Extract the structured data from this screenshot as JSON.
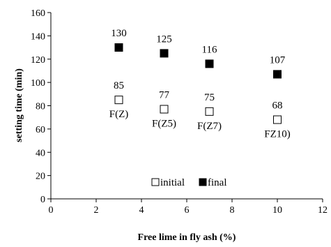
{
  "chart_data": {
    "type": "scatter",
    "title": "",
    "xlabel": "Free lime in fly ash (%)",
    "ylabel": "setting time (min)",
    "xlim": [
      0,
      12
    ],
    "ylim": [
      0,
      160
    ],
    "xticks": [
      0,
      2,
      4,
      6,
      8,
      10,
      12
    ],
    "yticks": [
      0,
      20,
      40,
      60,
      80,
      100,
      120,
      140,
      160
    ],
    "grid": false,
    "legend_position": "bottom-center",
    "series": [
      {
        "name": "initial",
        "marker": "open-square",
        "color": "#000000",
        "points": [
          {
            "x": 3,
            "y": 85,
            "label": "85",
            "category": "F(Z)"
          },
          {
            "x": 5,
            "y": 77,
            "label": "77",
            "category": "F(Z5)"
          },
          {
            "x": 7,
            "y": 75,
            "label": "75",
            "category": "F(Z7)"
          },
          {
            "x": 10,
            "y": 68,
            "label": "68",
            "category": "FZ10)"
          }
        ]
      },
      {
        "name": "final",
        "marker": "filled-square",
        "color": "#000000",
        "points": [
          {
            "x": 3,
            "y": 130,
            "label": "130"
          },
          {
            "x": 5,
            "y": 125,
            "label": "125"
          },
          {
            "x": 7,
            "y": 116,
            "label": "116"
          },
          {
            "x": 10,
            "y": 107,
            "label": "107"
          }
        ]
      }
    ]
  }
}
